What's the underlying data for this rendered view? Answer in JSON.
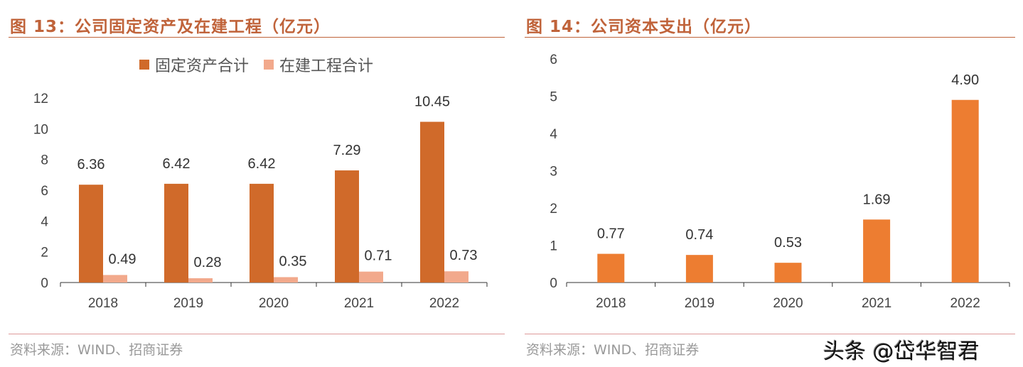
{
  "left": {
    "title": "图 13：公司固定资产及在建工程（亿元）",
    "source": "资料来源：WIND、招商证券"
  },
  "right": {
    "title": "图 14：公司资本支出（亿元）",
    "source": "资料来源：WIND、招商证券"
  },
  "watermark": "头条 @岱华智君",
  "chart_data": [
    {
      "type": "bar",
      "categories": [
        "2018",
        "2019",
        "2020",
        "2021",
        "2022"
      ],
      "series": [
        {
          "name": "固定资产合计",
          "values": [
            6.36,
            6.42,
            6.42,
            7.29,
            10.45
          ],
          "labels": [
            "6.36",
            "6.42",
            "6.42",
            "7.29",
            "10.45"
          ],
          "color": "#D06A2A"
        },
        {
          "name": "在建工程合计",
          "values": [
            0.49,
            0.28,
            0.35,
            0.71,
            0.73
          ],
          "labels": [
            "0.49",
            "0.28",
            "0.35",
            "0.71",
            "0.73"
          ],
          "color": "#F2A98C"
        }
      ],
      "ylim": [
        0,
        12
      ],
      "yticks": [
        "0",
        "2",
        "4",
        "6",
        "8",
        "10",
        "12"
      ],
      "legend": "top",
      "grid": false
    },
    {
      "type": "bar",
      "categories": [
        "2018",
        "2019",
        "2020",
        "2021",
        "2022"
      ],
      "series": [
        {
          "values": [
            0.77,
            0.74,
            0.53,
            1.69,
            4.9
          ],
          "labels": [
            "0.77",
            "0.74",
            "0.53",
            "1.69",
            "4.90"
          ],
          "color": "#ED7D31"
        }
      ],
      "ylim": [
        0,
        6
      ],
      "yticks": [
        "0",
        "1",
        "2",
        "3",
        "4",
        "5",
        "6"
      ],
      "grid": false
    }
  ]
}
